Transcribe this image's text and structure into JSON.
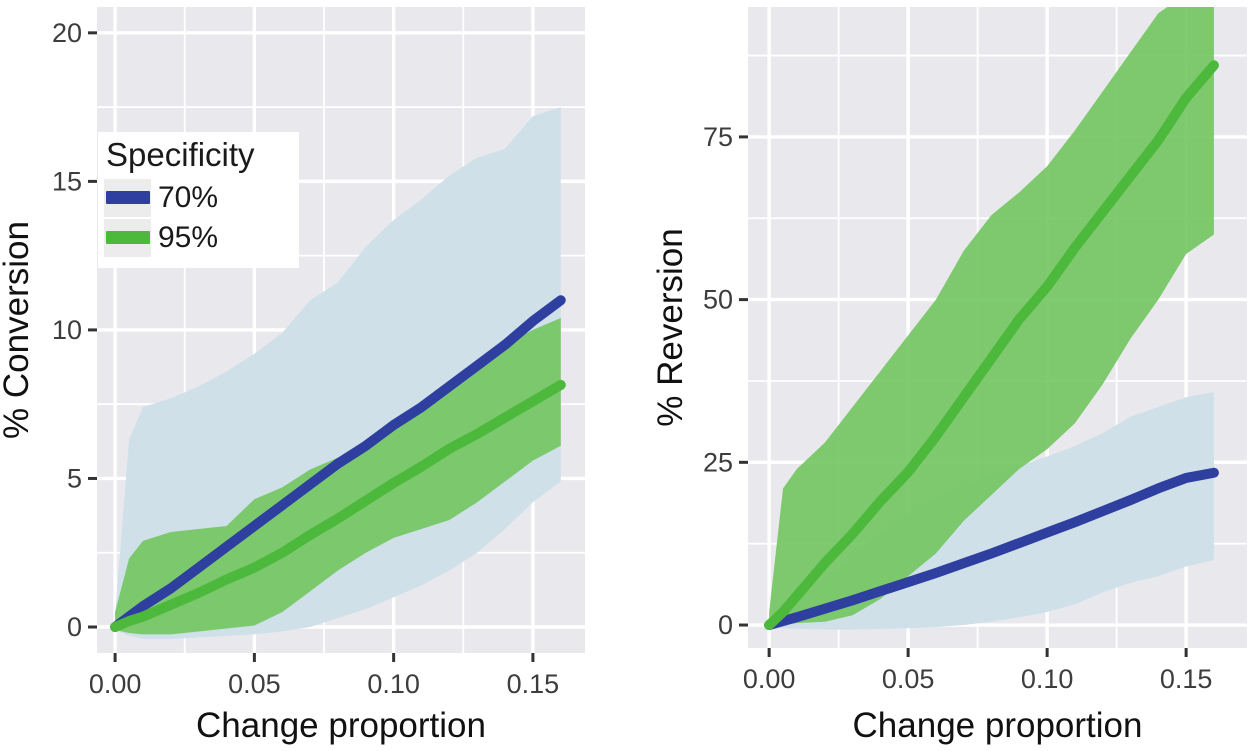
{
  "figure": {
    "background": "#ffffff",
    "panel_background": "#e9e9ed",
    "gridline_color": "#ffffff",
    "tick_color": "#333333",
    "tick_label_color": "#3d3d3d",
    "axis_title_color": "#111111"
  },
  "legend": {
    "title": "Specificity",
    "background": "#ffffff",
    "key_background": "#ececec",
    "items": [
      {
        "label": "70%",
        "color": "#2e3fa0"
      },
      {
        "label": "95%",
        "color": "#4cb83c"
      }
    ]
  },
  "chart_data": [
    {
      "type": "area",
      "title": "",
      "xlabel": "Change proportion",
      "ylabel": "% Conversion",
      "legend_position": "inside-top-left",
      "grid": true,
      "xlim": [
        -0.0065,
        0.1687
      ],
      "ylim": [
        -0.875,
        20.87
      ],
      "xticks": {
        "values": [
          0,
          0.05,
          0.1,
          0.15
        ],
        "labels": [
          "0.00",
          "0.05",
          "0.10",
          "0.15"
        ]
      },
      "yticks": {
        "values": [
          0,
          5,
          10,
          15,
          20
        ],
        "labels": [
          "0",
          "5",
          "10",
          "15",
          "20"
        ]
      },
      "x": [
        0,
        0.005,
        0.01,
        0.02,
        0.03,
        0.04,
        0.05,
        0.06,
        0.07,
        0.08,
        0.09,
        0.1,
        0.11,
        0.12,
        0.13,
        0.14,
        0.15,
        0.16
      ],
      "series": [
        {
          "name": "70%",
          "line_color": "#2e3fa0",
          "ribbon_color": "#cfe0e9",
          "values": [
            0,
            0.35,
            0.7,
            1.3,
            2.0,
            2.7,
            3.4,
            4.1,
            4.8,
            5.5,
            6.1,
            6.8,
            7.4,
            8.1,
            8.8,
            9.5,
            10.3,
            11.0
          ],
          "upper": [
            0.4,
            6.3,
            7.4,
            7.7,
            8.1,
            8.6,
            9.2,
            9.9,
            11.0,
            11.6,
            12.8,
            13.7,
            14.4,
            15.2,
            15.8,
            16.1,
            17.2,
            17.5
          ],
          "lower": [
            -0.1,
            -0.3,
            -0.4,
            -0.4,
            -0.35,
            -0.3,
            -0.25,
            -0.15,
            0,
            0.3,
            0.6,
            1.0,
            1.4,
            1.9,
            2.5,
            3.3,
            4.2,
            4.9
          ]
        },
        {
          "name": "95%",
          "line_color": "#4cb83c",
          "ribbon_color": "#72c55f",
          "values": [
            0,
            0.2,
            0.35,
            0.75,
            1.15,
            1.6,
            2.0,
            2.5,
            3.1,
            3.65,
            4.25,
            4.85,
            5.4,
            6.0,
            6.5,
            7.05,
            7.6,
            8.15
          ],
          "upper": [
            0.5,
            2.3,
            2.9,
            3.2,
            3.3,
            3.4,
            4.3,
            4.7,
            5.3,
            5.7,
            5.9,
            6.9,
            7.6,
            8.3,
            8.9,
            9.5,
            10.0,
            10.4
          ],
          "lower": [
            -0.1,
            -0.2,
            -0.25,
            -0.25,
            -0.15,
            -0.05,
            0.05,
            0.5,
            1.2,
            1.9,
            2.5,
            3.0,
            3.3,
            3.6,
            4.2,
            4.9,
            5.6,
            6.1
          ]
        }
      ]
    },
    {
      "type": "area",
      "title": "",
      "xlabel": "Change proportion",
      "ylabel": "% Reversion",
      "legend_position": "none",
      "grid": true,
      "xlim": [
        -0.0076,
        0.1719
      ],
      "ylim": [
        -3.53,
        94.96
      ],
      "xticks": {
        "values": [
          0,
          0.05,
          0.1,
          0.15
        ],
        "labels": [
          "0.00",
          "0.05",
          "0.10",
          "0.15"
        ]
      },
      "yticks": {
        "values": [
          0,
          25,
          50,
          75
        ],
        "labels": [
          "0",
          "25",
          "50",
          "75"
        ]
      },
      "x": [
        0,
        0.005,
        0.01,
        0.02,
        0.03,
        0.04,
        0.05,
        0.06,
        0.07,
        0.08,
        0.09,
        0.1,
        0.11,
        0.12,
        0.13,
        0.14,
        0.15,
        0.16
      ],
      "series": [
        {
          "name": "70%",
          "line_color": "#2e3fa0",
          "ribbon_color": "#cfe0e9",
          "values": [
            0,
            0.6,
            1.2,
            2.5,
            3.8,
            5.2,
            6.6,
            8.0,
            9.5,
            11.0,
            12.6,
            14.2,
            15.8,
            17.5,
            19.2,
            21.0,
            22.6,
            23.4
          ],
          "upper": [
            0.8,
            2.5,
            4,
            7,
            10.5,
            14,
            17,
            19.5,
            21.3,
            23,
            24.5,
            25.9,
            27.5,
            29.5,
            32,
            33.5,
            35,
            35.8
          ],
          "lower": [
            -0.3,
            -0.5,
            -0.6,
            -0.7,
            -0.7,
            -0.6,
            -0.5,
            -0.3,
            0,
            0.5,
            1.2,
            2.0,
            3.2,
            5.0,
            6.5,
            7.5,
            9.0,
            10.0
          ]
        },
        {
          "name": "95%",
          "line_color": "#4cb83c",
          "ribbon_color": "#72c55f",
          "values": [
            0,
            2,
            4.5,
            9.5,
            14,
            19,
            23.5,
            29,
            35,
            41,
            47,
            52,
            58,
            63.5,
            69,
            74.5,
            81,
            86
          ],
          "upper": [
            2,
            21,
            24,
            28,
            33.5,
            39,
            44.5,
            50,
            57.5,
            63,
            66.5,
            70.5,
            76,
            82,
            88,
            94,
            97,
            100
          ],
          "lower": [
            -0.5,
            0,
            0.3,
            0.5,
            1.5,
            4,
            7.5,
            11,
            16,
            20,
            24,
            27,
            31,
            37,
            44,
            50,
            57,
            60
          ]
        }
      ]
    }
  ]
}
